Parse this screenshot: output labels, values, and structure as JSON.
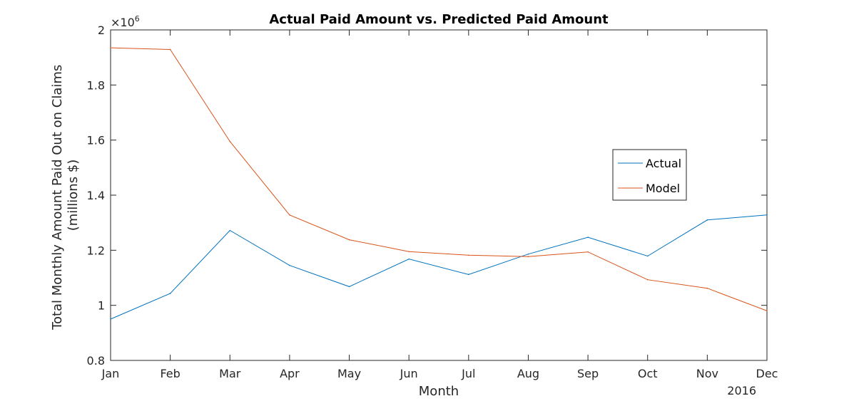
{
  "chart_data": {
    "type": "line",
    "title": "Actual Paid Amount vs. Predicted Paid Amount",
    "xlabel": "Month",
    "ylabel_line1": "Total Monthly Amount Paid Out on Claims",
    "ylabel_line2": "(millions $)",
    "x_secondary_label": "2016",
    "y_exponent_label": "×10",
    "y_exponent_power": "6",
    "categories": [
      "Jan",
      "Feb",
      "Mar",
      "Apr",
      "May",
      "Jun",
      "Jul",
      "Aug",
      "Sep",
      "Oct",
      "Nov",
      "Dec"
    ],
    "ylim": [
      0.8,
      2.0
    ],
    "y_ticks": [
      0.8,
      1.0,
      1.2,
      1.4,
      1.6,
      1.8,
      2.0
    ],
    "y_tick_labels": [
      "0.8",
      "1",
      "1.2",
      "1.4",
      "1.6",
      "1.8",
      "2"
    ],
    "grid": false,
    "legend_position": "right-center",
    "series": [
      {
        "name": "Actual",
        "color": "#0072BD",
        "values": [
          0.95,
          1.043,
          1.272,
          1.145,
          1.068,
          1.168,
          1.112,
          1.186,
          1.247,
          1.179,
          1.31,
          1.328
        ]
      },
      {
        "name": "Model",
        "color": "#D95319",
        "values": [
          1.935,
          1.929,
          1.595,
          1.328,
          1.238,
          1.195,
          1.182,
          1.177,
          1.194,
          1.093,
          1.062,
          0.98
        ]
      }
    ]
  }
}
